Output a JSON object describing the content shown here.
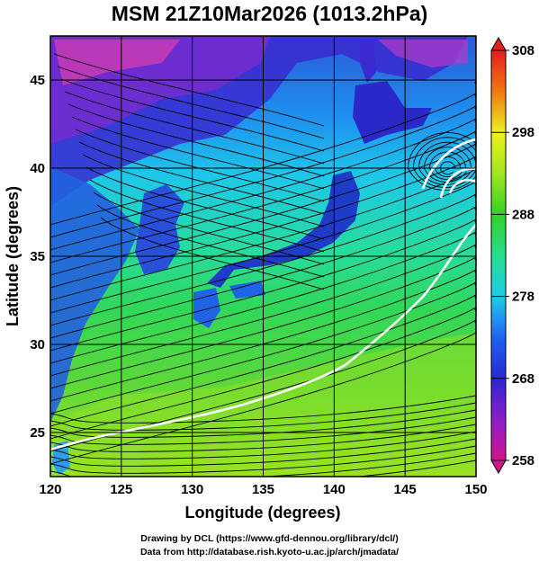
{
  "title": "MSM 21Z10Mar2026 (1013.2hPa)",
  "map": {
    "x_axis": {
      "label": "Longitude (degrees)",
      "range": [
        120,
        150
      ],
      "ticks": [
        "120",
        "125",
        "130",
        "135",
        "140",
        "145",
        "150"
      ]
    },
    "y_axis": {
      "label": "Latitude  (degrees)",
      "range": [
        22.5,
        47.5
      ],
      "ticks": [
        "25",
        "30",
        "35",
        "40",
        "45"
      ]
    },
    "grid_spacing_deg": 5,
    "grid": true,
    "field": "temperature (K)",
    "overlay": "streamlines",
    "colorbar": {
      "ticks": [
        "308",
        "298",
        "288",
        "278",
        "268",
        "258"
      ],
      "range": [
        258,
        308
      ],
      "colors": [
        "#d2148c",
        "#8c1ec8",
        "#2828d2",
        "#1e64f0",
        "#1ecdeb",
        "#28dc8c",
        "#32d228",
        "#a0e61e",
        "#f0f01e",
        "#f0c81e",
        "#f07814",
        "#e61e1e"
      ]
    }
  },
  "credits": {
    "line1": "Drawing by DCL (https://www.gfd-dennou.org/library/dcl/)",
    "line2": "Data from http://database.rish.kyoto-u.ac.jp/arch/jmadata/"
  }
}
